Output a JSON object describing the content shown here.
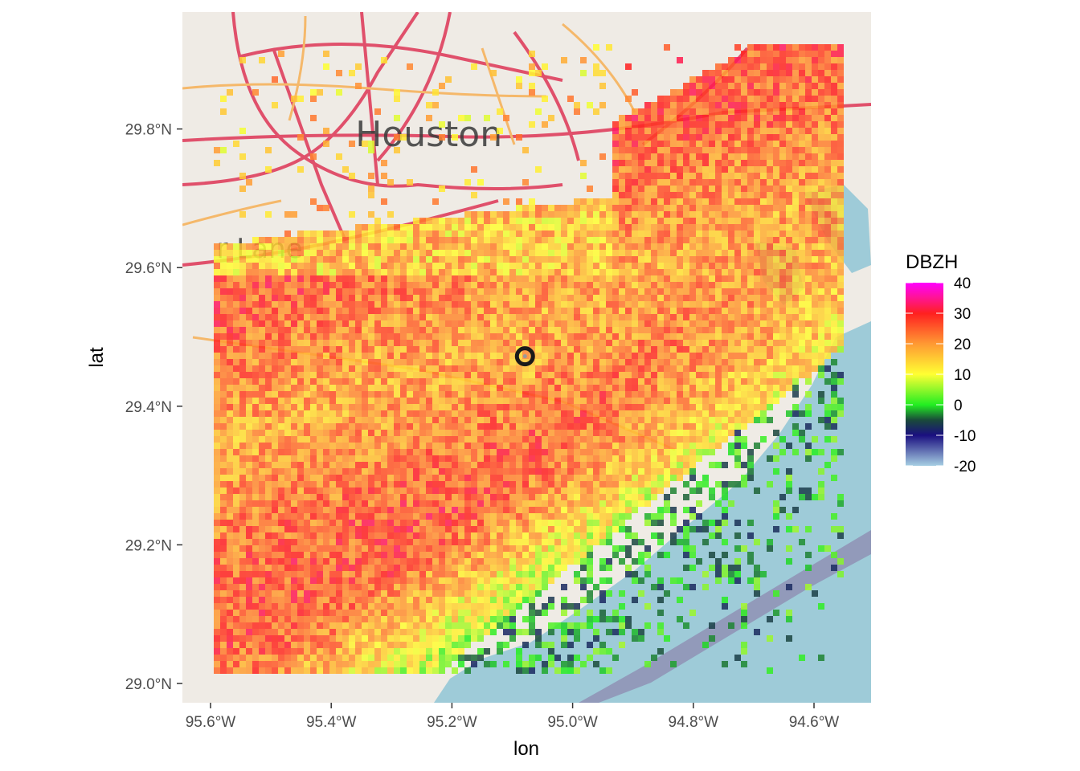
{
  "map": {
    "x_axis_title": "lon",
    "y_axis_title": "lat",
    "x_ticks": [
      {
        "value": -95.6,
        "label": "95.6°W"
      },
      {
        "value": -95.4,
        "label": "95.4°W"
      },
      {
        "value": -95.2,
        "label": "95.2°W"
      },
      {
        "value": -95.0,
        "label": "95.0°W"
      },
      {
        "value": -94.8,
        "label": "94.8°W"
      },
      {
        "value": -94.6,
        "label": "94.6°W"
      }
    ],
    "y_ticks": [
      {
        "value": 29.0,
        "label": "29.0°N"
      },
      {
        "value": 29.2,
        "label": "29.2°N"
      },
      {
        "value": 29.4,
        "label": "29.4°N"
      },
      {
        "value": 29.6,
        "label": "29.6°N"
      },
      {
        "value": 29.8,
        "label": "29.8°N"
      }
    ],
    "basemap_labels": [
      {
        "text": "Houston",
        "lon": -95.36,
        "lat": 29.775
      },
      {
        "text": "r Lane",
        "lon": -95.59,
        "lat": 29.614
      }
    ],
    "radar_site": {
      "lon": -95.079,
      "lat": 29.472
    },
    "legend": {
      "title": "DBZH",
      "ticks": [
        {
          "value": 40,
          "label": "40"
        },
        {
          "value": 30,
          "label": "30"
        },
        {
          "value": 20,
          "label": "20"
        },
        {
          "value": 10,
          "label": "10"
        },
        {
          "value": 0,
          "label": "0"
        },
        {
          "value": -10,
          "label": "-10"
        },
        {
          "value": -20,
          "label": "-20"
        }
      ],
      "range": [
        -20,
        40
      ],
      "color_stops": [
        {
          "value": -20,
          "color": "#a6cee3"
        },
        {
          "value": -10,
          "color": "#1a0f80"
        },
        {
          "value": -5,
          "color": "#1a4a3a"
        },
        {
          "value": 0,
          "color": "#22ee22"
        },
        {
          "value": 10,
          "color": "#ffff33"
        },
        {
          "value": 20,
          "color": "#ff9933"
        },
        {
          "value": 30,
          "color": "#ff2020"
        },
        {
          "value": 35,
          "color": "#ff1493"
        },
        {
          "value": 40,
          "color": "#ff00ff"
        }
      ]
    },
    "colors": {
      "land": "#efebe5",
      "water": "#9ecbd8",
      "highway": "#e0506b",
      "arterial": "#f5b86a"
    }
  }
}
